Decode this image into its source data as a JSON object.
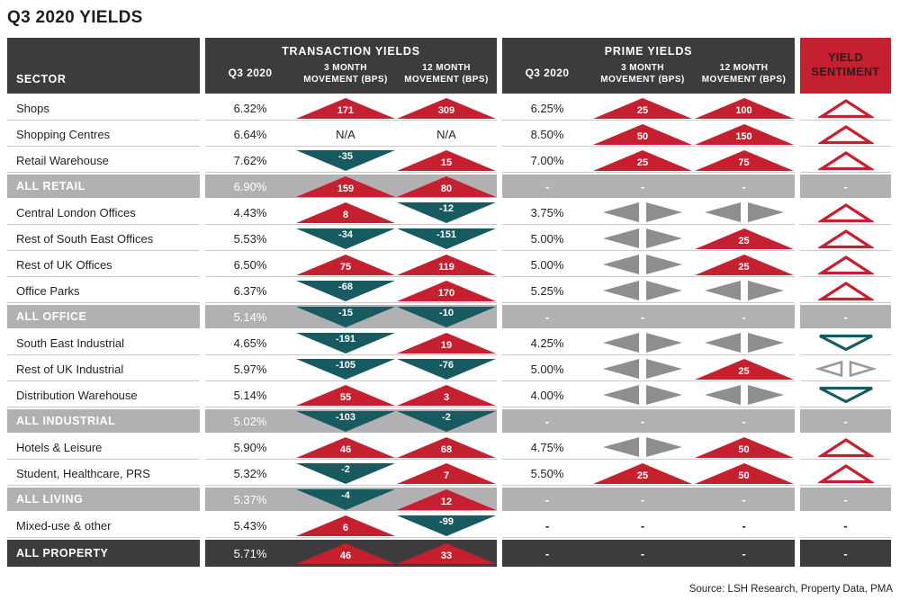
{
  "title": "Q3 2020 YIELDS",
  "source": "Source: LSH Research, Property Data, PMA",
  "colors": {
    "header_dark": "#3c3c3c",
    "accent_red": "#c52030",
    "accent_teal": "#175a60",
    "arrow_gray": "#8e8e90",
    "summary_row_gray": "#b1b1b3",
    "row_divider": "#c9c9c9"
  },
  "icons": {
    "up": "up-triangle-icon",
    "down": "down-triangle-icon",
    "side": "sideways-triangles-icon",
    "up_outline": "up-outline-triangle-icon",
    "down_outline": "down-outline-triangle-icon",
    "side_outline": "sideways-outline-triangles-icon"
  },
  "header": {
    "sector": "SECTOR",
    "groups": [
      {
        "label": "TRANSACTION YIELDS",
        "cols": [
          "Q3 2020",
          "3 MONTH\nMOVEMENT (BPS)",
          "12 MONTH\nMOVEMENT (BPS)"
        ]
      },
      {
        "label": "PRIME YIELDS",
        "cols": [
          "Q3 2020",
          "3 MONTH\nMOVEMENT (BPS)",
          "12 MONTH\nMOVEMENT (BPS)"
        ]
      }
    ],
    "sentiment": "YIELD\nSENTIMENT"
  },
  "chart_data": {
    "type": "table",
    "title": "Q3 2020 YIELDS",
    "columns": [
      "Sector",
      "Transaction Q3 2020",
      "Transaction 3 Month Movement (bps)",
      "Transaction 12 Month Movement (bps)",
      "Prime Q3 2020",
      "Prime 3 Month Movement (bps)",
      "Prime 12 Month Movement (bps)",
      "Yield Sentiment"
    ],
    "rows": [
      {
        "sector": "Shops",
        "style": "normal",
        "t_q3": "6.32%",
        "t_3m": {
          "dir": "up",
          "value": "171"
        },
        "t_12m": {
          "dir": "up",
          "value": "309"
        },
        "p_q3": "6.25%",
        "p_3m": {
          "dir": "up",
          "value": "25"
        },
        "p_12m": {
          "dir": "up",
          "value": "100"
        },
        "sentiment": {
          "dir": "up"
        }
      },
      {
        "sector": "Shopping Centres",
        "style": "normal",
        "t_q3": "6.64%",
        "t_3m": {
          "dir": "na",
          "value": "N/A"
        },
        "t_12m": {
          "dir": "na",
          "value": "N/A"
        },
        "p_q3": "8.50%",
        "p_3m": {
          "dir": "up",
          "value": "50"
        },
        "p_12m": {
          "dir": "up",
          "value": "150"
        },
        "sentiment": {
          "dir": "up"
        }
      },
      {
        "sector": "Retail Warehouse",
        "style": "normal",
        "t_q3": "7.62%",
        "t_3m": {
          "dir": "down",
          "value": "-35"
        },
        "t_12m": {
          "dir": "up",
          "value": "15"
        },
        "p_q3": "7.00%",
        "p_3m": {
          "dir": "up",
          "value": "25"
        },
        "p_12m": {
          "dir": "up",
          "value": "75"
        },
        "sentiment": {
          "dir": "up"
        }
      },
      {
        "sector": "ALL RETAIL",
        "style": "gray",
        "t_q3": "6.90%",
        "t_3m": {
          "dir": "up",
          "value": "159"
        },
        "t_12m": {
          "dir": "up",
          "value": "80"
        },
        "p_q3": "-",
        "p_3m": {
          "dir": "dash",
          "value": "-"
        },
        "p_12m": {
          "dir": "dash",
          "value": "-"
        },
        "sentiment": {
          "dir": "dash",
          "value": "-"
        }
      },
      {
        "sector": "Central London Offices",
        "style": "normal",
        "t_q3": "4.43%",
        "t_3m": {
          "dir": "up",
          "value": "8"
        },
        "t_12m": {
          "dir": "down",
          "value": "-12"
        },
        "p_q3": "3.75%",
        "p_3m": {
          "dir": "side"
        },
        "p_12m": {
          "dir": "side"
        },
        "sentiment": {
          "dir": "up"
        }
      },
      {
        "sector": "Rest of South East Offices",
        "style": "normal",
        "t_q3": "5.53%",
        "t_3m": {
          "dir": "down",
          "value": "-34"
        },
        "t_12m": {
          "dir": "down",
          "value": "-151"
        },
        "p_q3": "5.00%",
        "p_3m": {
          "dir": "side"
        },
        "p_12m": {
          "dir": "up",
          "value": "25"
        },
        "sentiment": {
          "dir": "up"
        }
      },
      {
        "sector": "Rest of UK Offices",
        "style": "normal",
        "t_q3": "6.50%",
        "t_3m": {
          "dir": "up",
          "value": "75"
        },
        "t_12m": {
          "dir": "up",
          "value": "119"
        },
        "p_q3": "5.00%",
        "p_3m": {
          "dir": "side"
        },
        "p_12m": {
          "dir": "up",
          "value": "25"
        },
        "sentiment": {
          "dir": "up"
        }
      },
      {
        "sector": "Office Parks",
        "style": "normal",
        "t_q3": "6.37%",
        "t_3m": {
          "dir": "down",
          "value": "-68"
        },
        "t_12m": {
          "dir": "up",
          "value": "170"
        },
        "p_q3": "5.25%",
        "p_3m": {
          "dir": "side"
        },
        "p_12m": {
          "dir": "side"
        },
        "sentiment": {
          "dir": "up"
        }
      },
      {
        "sector": "ALL OFFICE",
        "style": "gray",
        "t_q3": "5.14%",
        "t_3m": {
          "dir": "down",
          "value": "-15"
        },
        "t_12m": {
          "dir": "down",
          "value": "-10"
        },
        "p_q3": "-",
        "p_3m": {
          "dir": "dash",
          "value": "-"
        },
        "p_12m": {
          "dir": "dash",
          "value": "-"
        },
        "sentiment": {
          "dir": "dash",
          "value": "-"
        }
      },
      {
        "sector": "South East Industrial",
        "style": "normal",
        "t_q3": "4.65%",
        "t_3m": {
          "dir": "down",
          "value": "-191"
        },
        "t_12m": {
          "dir": "up",
          "value": "19"
        },
        "p_q3": "4.25%",
        "p_3m": {
          "dir": "side"
        },
        "p_12m": {
          "dir": "side"
        },
        "sentiment": {
          "dir": "down"
        }
      },
      {
        "sector": "Rest of UK Industrial",
        "style": "normal",
        "t_q3": "5.97%",
        "t_3m": {
          "dir": "down",
          "value": "-105"
        },
        "t_12m": {
          "dir": "down",
          "value": "-76"
        },
        "p_q3": "5.00%",
        "p_3m": {
          "dir": "side"
        },
        "p_12m": {
          "dir": "up",
          "value": "25"
        },
        "sentiment": {
          "dir": "side"
        }
      },
      {
        "sector": "Distribution Warehouse",
        "style": "normal",
        "t_q3": "5.14%",
        "t_3m": {
          "dir": "up",
          "value": "55"
        },
        "t_12m": {
          "dir": "up",
          "value": "3"
        },
        "p_q3": "4.00%",
        "p_3m": {
          "dir": "side"
        },
        "p_12m": {
          "dir": "side"
        },
        "sentiment": {
          "dir": "down"
        }
      },
      {
        "sector": "ALL INDUSTRIAL",
        "style": "gray",
        "t_q3": "5.02%",
        "t_3m": {
          "dir": "down",
          "value": "-103"
        },
        "t_12m": {
          "dir": "down",
          "value": "-2"
        },
        "p_q3": "-",
        "p_3m": {
          "dir": "dash",
          "value": "-"
        },
        "p_12m": {
          "dir": "dash",
          "value": "-"
        },
        "sentiment": {
          "dir": "dash",
          "value": "-"
        }
      },
      {
        "sector": "Hotels & Leisure",
        "style": "normal",
        "t_q3": "5.90%",
        "t_3m": {
          "dir": "up",
          "value": "46"
        },
        "t_12m": {
          "dir": "up",
          "value": "68"
        },
        "p_q3": "4.75%",
        "p_3m": {
          "dir": "side"
        },
        "p_12m": {
          "dir": "up",
          "value": "50"
        },
        "sentiment": {
          "dir": "up"
        }
      },
      {
        "sector": "Student, Healthcare, PRS",
        "style": "normal",
        "t_q3": "5.32%",
        "t_3m": {
          "dir": "down",
          "value": "-2"
        },
        "t_12m": {
          "dir": "up",
          "value": "7"
        },
        "p_q3": "5.50%",
        "p_3m": {
          "dir": "up",
          "value": "25"
        },
        "p_12m": {
          "dir": "up",
          "value": "50"
        },
        "sentiment": {
          "dir": "up"
        }
      },
      {
        "sector": "ALL LIVING",
        "style": "gray",
        "t_q3": "5.37%",
        "t_3m": {
          "dir": "down",
          "value": "-4"
        },
        "t_12m": {
          "dir": "up",
          "value": "12"
        },
        "p_q3": "-",
        "p_3m": {
          "dir": "dash",
          "value": "-"
        },
        "p_12m": {
          "dir": "dash",
          "value": "-"
        },
        "sentiment": {
          "dir": "dash",
          "value": "-"
        }
      },
      {
        "sector": "Mixed-use & other",
        "style": "normal",
        "t_q3": "5.43%",
        "t_3m": {
          "dir": "up",
          "value": "6"
        },
        "t_12m": {
          "dir": "down",
          "value": "-99"
        },
        "p_q3": "-",
        "p_3m": {
          "dir": "dash",
          "value": "-"
        },
        "p_12m": {
          "dir": "dash",
          "value": "-"
        },
        "sentiment": {
          "dir": "dash",
          "value": "-"
        }
      },
      {
        "sector": "ALL PROPERTY",
        "style": "dark",
        "t_q3": "5.71%",
        "t_3m": {
          "dir": "up",
          "value": "46"
        },
        "t_12m": {
          "dir": "up",
          "value": "33"
        },
        "p_q3": "-",
        "p_3m": {
          "dir": "dash",
          "value": "-"
        },
        "p_12m": {
          "dir": "dash",
          "value": "-"
        },
        "sentiment": {
          "dir": "dash",
          "value": "-"
        }
      }
    ]
  }
}
